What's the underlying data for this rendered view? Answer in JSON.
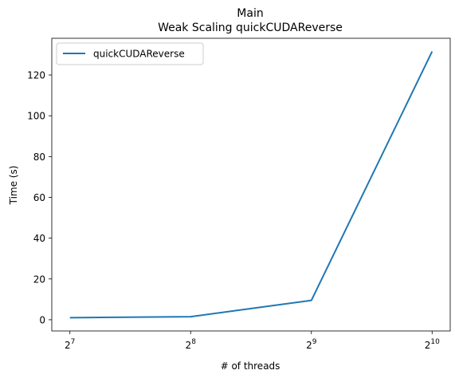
{
  "chart_data": {
    "type": "line",
    "title": "Main",
    "subtitle": "Weak Scaling quickCUDAReverse",
    "xlabel": "# of threads",
    "ylabel": "Time (s)",
    "x_scale": "log2",
    "x": [
      128,
      256,
      512,
      1024
    ],
    "x_tick_labels": [
      {
        "base": "2",
        "exp": "7"
      },
      {
        "base": "2",
        "exp": "8"
      },
      {
        "base": "2",
        "exp": "9"
      },
      {
        "base": "2",
        "exp": "10"
      }
    ],
    "y_ticks": [
      0,
      20,
      40,
      60,
      80,
      100,
      120
    ],
    "ylim": [
      -5.5,
      138
    ],
    "grid": false,
    "legend_position": "top-left",
    "series": [
      {
        "name": "quickCUDAReverse",
        "color": "#1f77b4",
        "values": [
          1.0,
          1.5,
          9.5,
          131.5
        ]
      }
    ]
  }
}
